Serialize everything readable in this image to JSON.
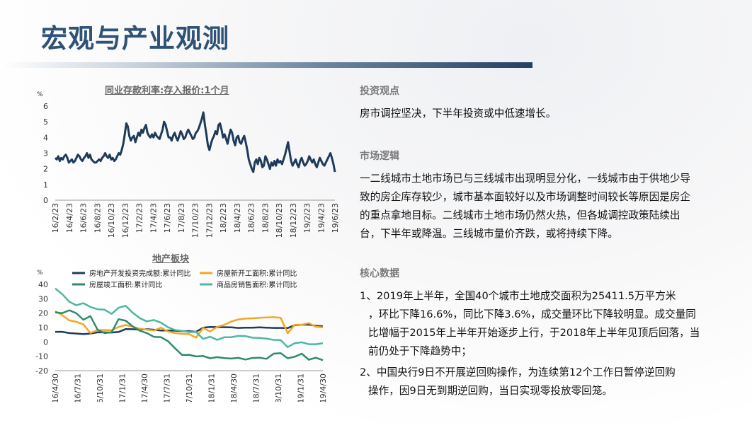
{
  "page": {
    "title": "宏观与产业观测"
  },
  "right": {
    "invest_title": "投资观点",
    "invest_text": "房市调控坚决，下半年投资或中低速增长。",
    "logic_title": "市场逻辑",
    "logic_text": "一二线城市土地市场已与三线城市出现明显分化，一线城市由于供地少导致的房企库存较少，城市基本面较好以及市场调整时间较长等原因是房企的重点拿地目标。二线城市土地市场仍然火热，但各城调控政策陆续出台，下半年或降温。三线城市量价齐跌，或将持续下降。",
    "data_title": "核心数据",
    "data_items": [
      {
        "first": "1、2019年上半年，全国40个城市土地成交面积为25411.5万平方米",
        "rest": "，环比下降16.6%，同比下降3.6%，成交量环比下降较明显。成交量同比增幅于2015年上半年开始逐步上行，于2018年上半年见顶后回落，当前仍处于下降趋势中；"
      },
      {
        "first": "2、中国央行9日不开展逆回购操作，为连续第12个工作日暂停逆回购",
        "rest": "操作，因9日无到期逆回购，当日实现零投放零回笼。"
      }
    ]
  },
  "chart_data": [
    {
      "type": "line",
      "title": "同业存款利率:存入报价:1个月",
      "ylabel": "%",
      "ylim": [
        0,
        6
      ],
      "yticks": [
        "0",
        "1",
        "2",
        "3",
        "4",
        "5",
        "6"
      ],
      "xticks": [
        "16/2/23",
        "16/4/23",
        "16/6/23",
        "16/8/23",
        "16/10/23",
        "16/12/23",
        "17/2/23",
        "17/4/23",
        "17/6/23",
        "17/8/23",
        "17/10/23",
        "17/12/23",
        "18/2/23",
        "18/4/23",
        "18/6/23",
        "18/8/23",
        "18/10/23",
        "18/12/23",
        "19/2/23",
        "19/4/23",
        "19/6/23"
      ],
      "series": [
        {
          "name": "",
          "color": "#1f3b5a",
          "values": [
            2.7,
            2.6,
            2.8,
            2.5,
            2.7,
            2.6,
            2.8,
            2.9,
            2.7,
            2.4,
            2.5,
            2.6,
            2.4,
            2.5,
            2.7,
            2.9,
            2.8,
            2.6,
            2.5,
            2.7,
            2.8,
            3.0,
            2.7,
            2.9,
            2.6,
            2.5,
            2.4,
            2.4,
            2.5,
            2.6,
            2.5,
            2.7,
            2.8,
            3.0,
            2.8,
            2.7,
            2.9,
            2.6,
            2.7,
            2.5,
            2.6,
            2.8,
            3.0,
            2.9,
            3.2,
            3.6,
            4.2,
            4.9,
            4.7,
            4.1,
            3.8,
            4.0,
            4.1,
            3.7,
            4.0,
            4.3,
            4.1,
            4.5,
            4.3,
            4.6,
            4.8,
            4.3,
            4.1,
            4.0,
            4.2,
            4.0,
            4.3,
            4.1,
            4.0,
            3.9,
            4.2,
            4.5,
            5.0,
            4.8,
            4.4,
            4.0,
            4.0,
            3.8,
            4.1,
            4.3,
            4.0,
            3.8,
            4.1,
            4.4,
            4.2,
            3.9,
            4.0,
            4.3,
            4.5,
            4.3,
            4.1,
            3.9,
            4.0,
            4.3,
            4.4,
            4.6,
            4.9,
            5.2,
            5.6,
            4.8,
            4.2,
            3.5,
            3.2,
            3.6,
            3.9,
            4.1,
            4.4,
            4.2,
            4.8,
            4.9,
            4.5,
            4.0,
            4.2,
            3.9,
            3.6,
            4.1,
            4.5,
            4.3,
            3.8,
            3.5,
            4.0,
            4.1,
            3.7,
            3.6,
            3.9,
            4.1,
            3.7,
            3.2,
            2.6,
            2.3,
            2.0,
            1.8,
            2.4,
            2.6,
            2.3,
            2.7,
            2.5,
            2.1,
            2.2,
            2.8,
            2.6,
            2.3,
            2.0,
            2.4,
            2.2,
            2.5,
            2.2,
            2.6,
            2.4,
            2.5,
            2.3,
            2.6,
            2.9,
            3.3,
            3.7,
            3.1,
            2.5,
            2.2,
            2.4,
            2.6,
            2.3,
            2.1,
            2.5,
            2.7,
            2.4,
            2.2,
            2.3,
            2.5,
            2.8,
            2.6,
            2.4,
            2.6,
            2.3,
            2.1,
            2.4,
            2.7,
            2.5,
            2.3,
            2.2,
            2.4,
            2.6,
            2.8,
            3.0,
            2.7,
            2.3,
            1.8
          ]
        }
      ]
    },
    {
      "type": "line",
      "title": "地产板块",
      "ylabel": "%",
      "ylim": [
        -20,
        40
      ],
      "yticks": [
        "-20",
        "-10",
        "0",
        "10",
        "20",
        "30",
        "40"
      ],
      "legend_position": "top",
      "xticks": [
        "16/4/30",
        "16/7/31",
        "16/10/31",
        "17/1/31",
        "17/4/30",
        "17/7/31",
        "17/10/31",
        "18/1/31",
        "18/4/30",
        "18/7/31",
        "18/10/31",
        "19/1/31",
        "19/4/30"
      ],
      "series": [
        {
          "name": "房地产开发投资完成额:累计同比",
          "color": "#1f3b5a",
          "values": [
            7.0,
            7.0,
            6.1,
            5.8,
            5.4,
            5.8,
            6.6,
            6.6,
            6.5,
            6.9,
            8.9,
            8.8,
            8.5,
            8.8,
            8.5,
            7.9,
            7.9,
            7.8,
            7.5,
            7.5,
            7.0,
            9.9,
            10.4,
            10.3,
            10.2,
            10.1,
            9.7,
            9.9,
            9.9,
            10.1,
            9.9,
            9.7,
            9.7,
            9.6,
            11.6,
            11.9,
            12.0,
            11.2,
            10.9
          ]
        },
        {
          "name": "房屋新开工面积:累计同比",
          "color": "#f5a623",
          "values": [
            21.4,
            18.6,
            14.9,
            14.0,
            12.1,
            6.2,
            8.1,
            8.3,
            8.1,
            10.4,
            11.7,
            10.6,
            9.1,
            8.5,
            7.9,
            9.9,
            7.2,
            6.1,
            5.6,
            5.4,
            2.9,
            9.7,
            7.2,
            10.5,
            11.8,
            14.2,
            15.6,
            16.2,
            16.4,
            16.8,
            17.0,
            17.2,
            16.8,
            6.0,
            11.9,
            11.9,
            13.1,
            10.5,
            10.1
          ]
        },
        {
          "name": "房屋竣工面积:累计同比",
          "color": "#2e8b6e",
          "values": [
            20.5,
            20.0,
            22.0,
            19.9,
            15.4,
            17.9,
            8.5,
            6.1,
            6.7,
            15.8,
            14.7,
            10.8,
            7.8,
            6.1,
            3.5,
            3.3,
            0.5,
            -4.4,
            -9.1,
            -9.0,
            -10.1,
            -9.8,
            -11.4,
            -10.6,
            -11.3,
            -11.6,
            -11.1,
            -12.3,
            -11.2,
            -11.0,
            -11.8,
            -8.2,
            -7.8,
            -11.4,
            -10.3,
            -8.2,
            -12.4,
            -11.0,
            -12.7
          ]
        },
        {
          "name": "商品房销售面积:累计同比",
          "color": "#4cb8a0",
          "values": [
            37.1,
            33.2,
            27.9,
            25.5,
            26.9,
            24.3,
            22.7,
            22.4,
            19.5,
            23.7,
            25.1,
            20.3,
            16.5,
            14.3,
            15.2,
            13.4,
            10.2,
            8.3,
            7.7,
            6.8,
            6.9,
            2.1,
            3.6,
            1.4,
            3.2,
            3.3,
            4.2,
            4.0,
            2.9,
            2.7,
            2.3,
            1.4,
            1.3,
            -3.6,
            -0.9,
            -0.3,
            -1.6,
            -1.6,
            -0.9
          ]
        }
      ]
    }
  ]
}
